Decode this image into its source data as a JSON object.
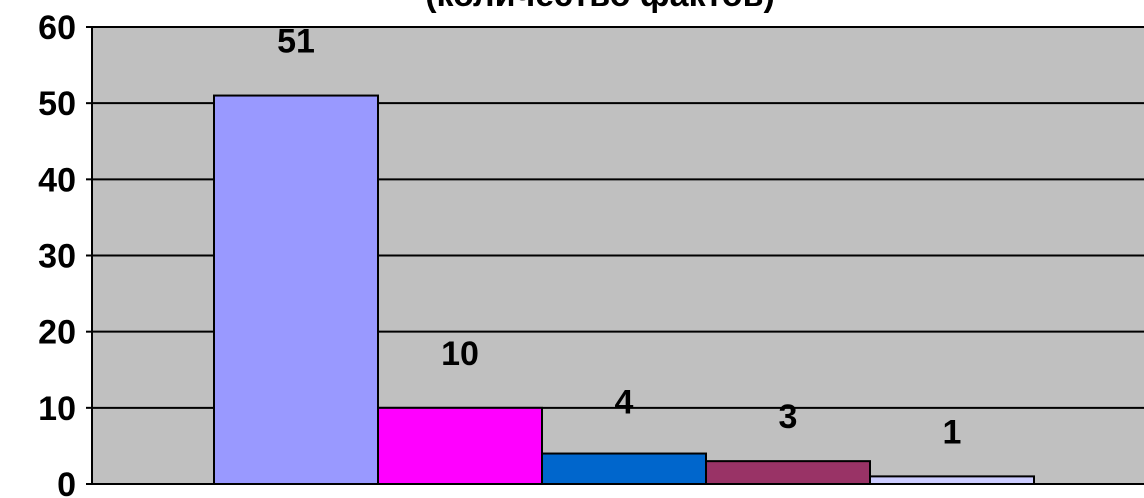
{
  "chart_data": {
    "type": "bar",
    "title": "(количество фактов)",
    "xlabel": "",
    "ylabel": "",
    "categories": [
      "",
      "",
      "",
      "",
      ""
    ],
    "values": [
      51,
      10,
      4,
      3,
      1
    ],
    "data_labels": [
      "51",
      "10",
      "4",
      "3",
      "1"
    ],
    "bar_colors": [
      "#9999FF",
      "#FF00FF",
      "#0066CC",
      "#993366",
      "#CCCCFF"
    ],
    "ylim": [
      0,
      60
    ],
    "yticks": [
      0,
      10,
      20,
      30,
      40,
      50,
      60
    ],
    "ytick_labels": [
      "0",
      "10",
      "20",
      "30",
      "40",
      "50",
      "60"
    ],
    "grid": true,
    "legend": "none",
    "plot_background": "#C0C0C0"
  }
}
